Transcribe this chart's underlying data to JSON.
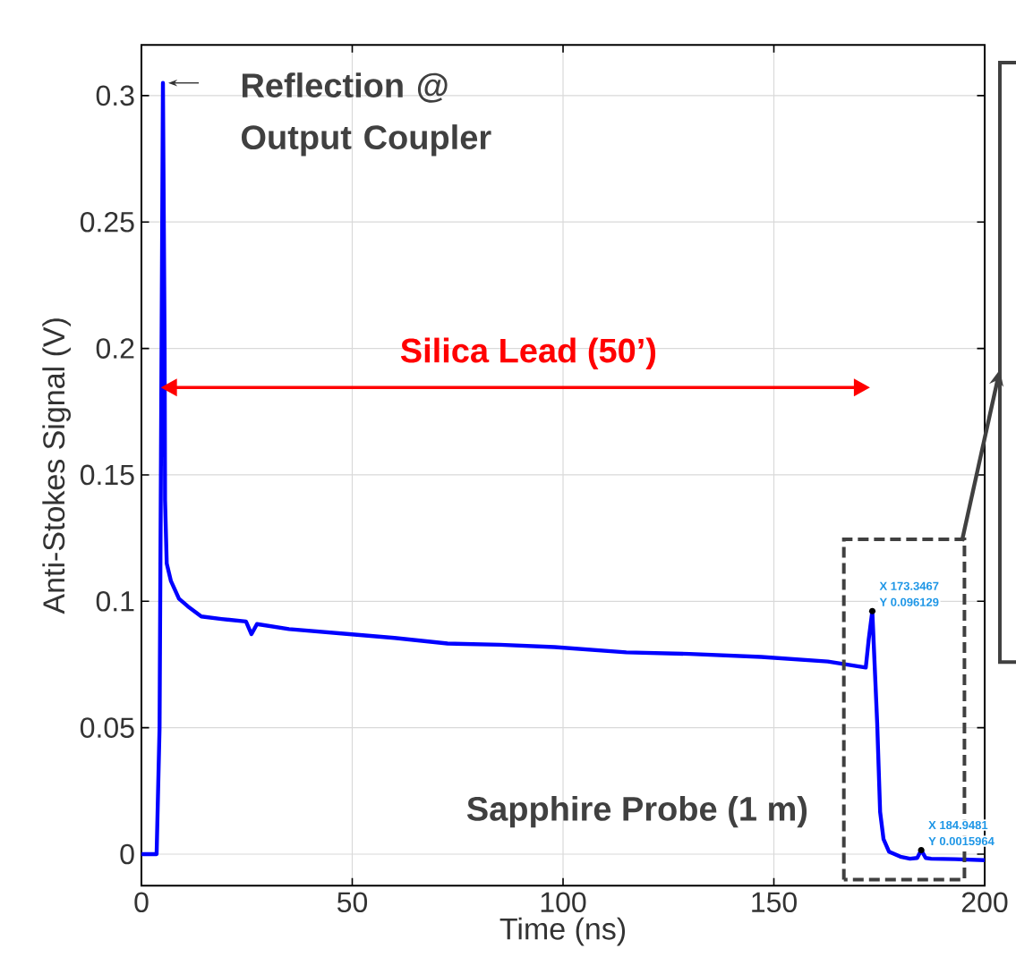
{
  "chart_data": {
    "type": "line",
    "xlabel": "Time (ns)",
    "ylabel": "Anti-Stokes Signal (V)",
    "xlim": [
      0,
      200
    ],
    "ylim": [
      -0.0125,
      0.32
    ],
    "xticks": [
      0,
      50,
      100,
      150,
      200
    ],
    "yticks": [
      0,
      0.05,
      0.1,
      0.15,
      0.2,
      0.25,
      0.3
    ],
    "grid": true,
    "series": [
      {
        "color": "#0000ff",
        "x": [
          0,
          3.6,
          4.3,
          5.1,
          5.5,
          5.6,
          6,
          7,
          8.9,
          11,
          14.2,
          19,
          24.8,
          26.1,
          27.4,
          35,
          49.3,
          60,
          72.6,
          85,
          98,
          115,
          130,
          147,
          162.8,
          171.8,
          172.5,
          173.3467,
          174.5,
          175.2,
          176,
          177.3,
          180,
          182.3,
          184,
          184.9481,
          186,
          187.3,
          193,
          200
        ],
        "values": [
          0,
          0,
          0.05,
          0.305,
          0.2,
          0.14,
          0.115,
          0.108,
          0.101,
          0.098,
          0.094,
          0.093,
          0.092,
          0.087,
          0.091,
          0.089,
          0.087,
          0.0855,
          0.0833,
          0.0828,
          0.0819,
          0.0798,
          0.0792,
          0.078,
          0.0762,
          0.0738,
          0.085,
          0.096129,
          0.052,
          0.0167,
          0.006,
          0.001,
          -0.001,
          -0.0018,
          -0.0015,
          0.0015964,
          -0.0015,
          -0.0018,
          -0.002,
          -0.0024
        ]
      }
    ],
    "annotations": [
      {
        "text": "Reflection @ Output Coupler",
        "x": 5.1,
        "y": 0.305
      },
      "Silica Lead (50’)",
      "Sapphire Probe (1 m)",
      {
        "text": "X 173.3467",
        "x": 173.3467,
        "y": 0.096129
      },
      {
        "text": "Y 0.096129",
        "x": 173.3467,
        "y": 0.096129
      },
      {
        "text": "X 184.9481",
        "x": 184.9481,
        "y": 0.0015964
      },
      {
        "text": "Y 0.0015964",
        "x": 184.9481,
        "y": 0.0015964
      }
    ]
  }
}
